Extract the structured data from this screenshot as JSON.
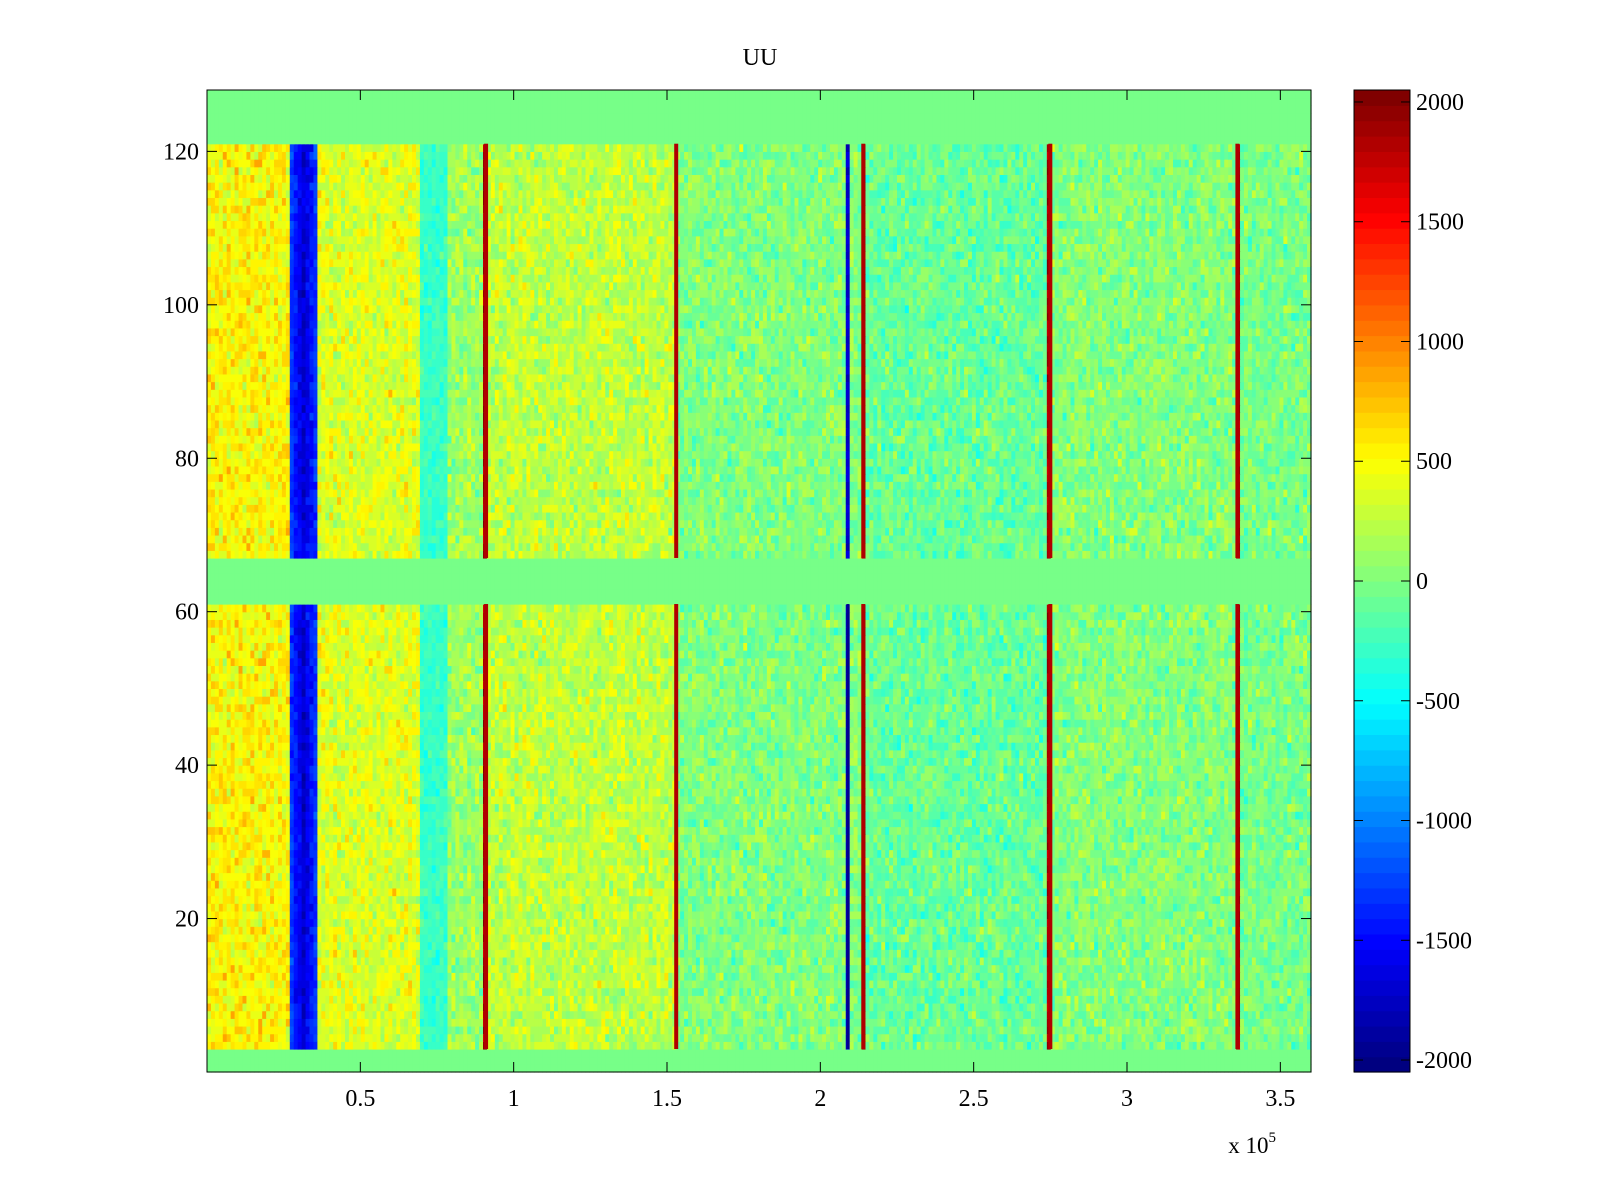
{
  "chart_data": {
    "type": "heatmap",
    "title": "UU",
    "xlabel": "",
    "ylabel": "",
    "x_range": [
      0,
      3.6
    ],
    "x_scale_label": "x 10",
    "x_scale_exponent": "5",
    "y_range": [
      0,
      128
    ],
    "x_ticks": [
      {
        "value": 0.5,
        "label": "0.5"
      },
      {
        "value": 1,
        "label": "1"
      },
      {
        "value": 1.5,
        "label": "1.5"
      },
      {
        "value": 2,
        "label": "2"
      },
      {
        "value": 2.5,
        "label": "2.5"
      },
      {
        "value": 3,
        "label": "3"
      },
      {
        "value": 3.5,
        "label": "3.5"
      }
    ],
    "y_ticks": [
      {
        "value": 20,
        "label": "20"
      },
      {
        "value": 40,
        "label": "40"
      },
      {
        "value": 60,
        "label": "60"
      },
      {
        "value": 80,
        "label": "80"
      },
      {
        "value": 100,
        "label": "100"
      },
      {
        "value": 120,
        "label": "120"
      }
    ],
    "colorbar": {
      "colormap": "jet",
      "range": [
        -2050,
        2050
      ],
      "ticks": [
        {
          "value": 2000,
          "label": "2000"
        },
        {
          "value": 1500,
          "label": "1500"
        },
        {
          "value": 1000,
          "label": "1000"
        },
        {
          "value": 500,
          "label": "500"
        },
        {
          "value": 0,
          "label": "0"
        },
        {
          "value": -500,
          "label": "-500"
        },
        {
          "value": -1000,
          "label": "-1000"
        },
        {
          "value": -1500,
          "label": "-1500"
        },
        {
          "value": -2000,
          "label": "-2000"
        }
      ]
    },
    "zero_bands_y": [
      [
        0,
        3
      ],
      [
        61,
        67
      ],
      [
        121,
        128
      ]
    ],
    "low_band_x": [
      0.27,
      0.36
    ],
    "secondary_low_band_x": [
      0.7,
      0.78
    ],
    "high_lines_x": [
      0.91,
      1.53,
      2.14,
      2.75,
      3.36
    ],
    "low_line_x": [
      2.09
    ],
    "regions": [
      {
        "x_range": [
          0,
          0.27
        ],
        "mean": 520,
        "spread": 420
      },
      {
        "x_range": [
          0.36,
          0.7
        ],
        "mean": 380,
        "spread": 420
      },
      {
        "x_range": [
          0.7,
          0.91
        ],
        "mean": 120,
        "spread": 420
      },
      {
        "x_range": [
          0.91,
          1.53
        ],
        "mean": 260,
        "spread": 420
      },
      {
        "x_range": [
          1.53,
          2.14
        ],
        "mean": 10,
        "spread": 400
      },
      {
        "x_range": [
          2.14,
          2.75
        ],
        "mean": -90,
        "spread": 400
      },
      {
        "x_range": [
          2.75,
          3.36
        ],
        "mean": 20,
        "spread": 400
      },
      {
        "x_range": [
          3.36,
          3.6
        ],
        "mean": -20,
        "spread": 400
      }
    ]
  }
}
